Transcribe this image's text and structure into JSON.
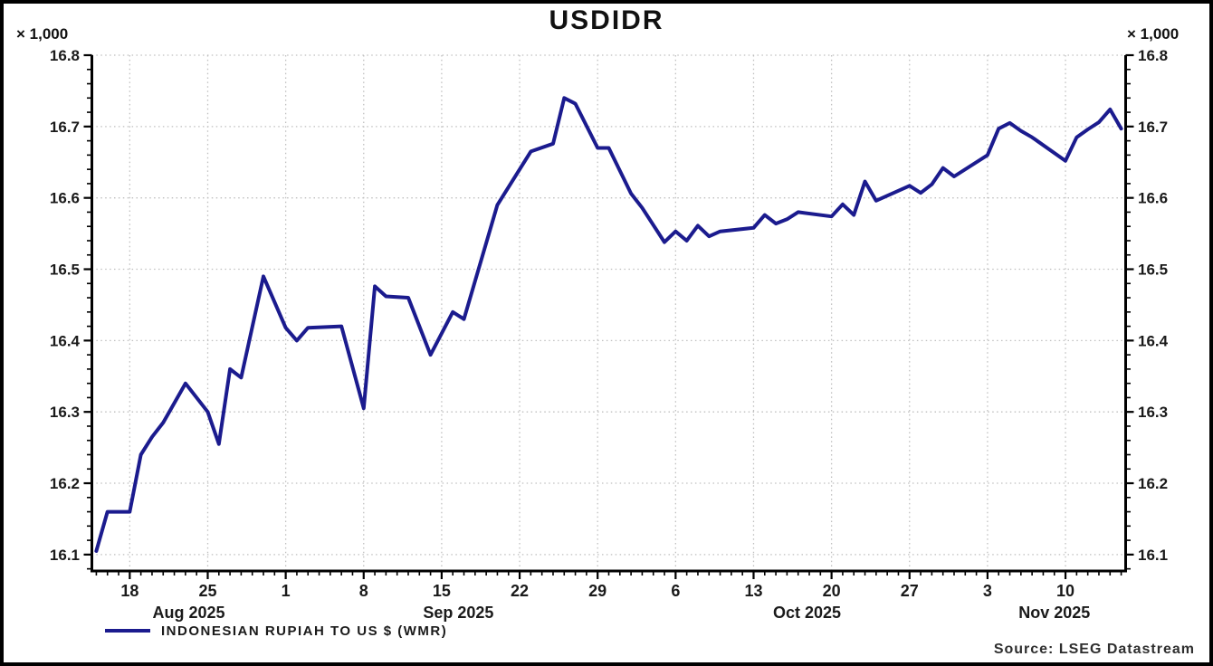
{
  "title": "USDIDR",
  "axis_multiplier": "× 1,000",
  "legend": {
    "label": "INDONESIAN RUPIAH TO US $ (WMR)"
  },
  "source": "Source: LSEG Datastream",
  "colors": {
    "line": "#1b1b8e",
    "grid": "#bfbfbf",
    "axis": "#000000",
    "tick_text": "#1a1a1a"
  },
  "chart_data": {
    "type": "line",
    "title": "USDIDR",
    "series_name": "INDONESIAN RUPIAH TO US $ (WMR)",
    "y_unit_multiplier": "× 1,000",
    "grid": "dotted",
    "legend_position": "bottom-left",
    "ylim": [
      16.077,
      16.8
    ],
    "y_ticks": [
      16.1,
      16.2,
      16.3,
      16.4,
      16.5,
      16.6,
      16.7,
      16.8
    ],
    "y_tick_labels": [
      "16.1",
      "16.2",
      "16.3",
      "16.4",
      "16.5",
      "16.6",
      "16.7",
      "16.8"
    ],
    "y_minor_step": 0.02,
    "x_axis": {
      "start_day": -0.4,
      "end_day": 92.4,
      "day_zero_date": "Aug 15 2025",
      "week_ticks": [
        {
          "day": 3,
          "label": "18"
        },
        {
          "day": 10,
          "label": "25"
        },
        {
          "day": 17,
          "label": "1"
        },
        {
          "day": 24,
          "label": "8"
        },
        {
          "day": 31,
          "label": "15"
        },
        {
          "day": 38,
          "label": "22"
        },
        {
          "day": 45,
          "label": "29"
        },
        {
          "day": 52,
          "label": "6"
        },
        {
          "day": 59,
          "label": "13"
        },
        {
          "day": 66,
          "label": "20"
        },
        {
          "day": 73,
          "label": "27"
        },
        {
          "day": 80,
          "label": "3"
        },
        {
          "day": 87,
          "label": "10"
        }
      ],
      "month_labels": [
        {
          "day": 8.3,
          "label": "Aug 2025"
        },
        {
          "day": 32.5,
          "label": "Sep 2025"
        },
        {
          "day": 63.8,
          "label": "Oct 2025"
        },
        {
          "day": 86.0,
          "label": "Nov 2025"
        }
      ]
    },
    "points": [
      {
        "day": 0,
        "date": "Aug 15",
        "value": 16.105
      },
      {
        "day": 1,
        "date": "Aug 16",
        "value": 16.16
      },
      {
        "day": 3,
        "date": "Aug 18",
        "value": 16.16
      },
      {
        "day": 4,
        "date": "Aug 19",
        "value": 16.24
      },
      {
        "day": 5,
        "date": "Aug 20",
        "value": 16.265
      },
      {
        "day": 6,
        "date": "Aug 21",
        "value": 16.285
      },
      {
        "day": 8,
        "date": "Aug 23",
        "value": 16.34
      },
      {
        "day": 10,
        "date": "Aug 25",
        "value": 16.3
      },
      {
        "day": 11,
        "date": "Aug 26",
        "value": 16.255
      },
      {
        "day": 12,
        "date": "Aug 27",
        "value": 16.36
      },
      {
        "day": 13,
        "date": "Aug 28",
        "value": 16.348
      },
      {
        "day": 15,
        "date": "Aug 30",
        "value": 16.49
      },
      {
        "day": 17,
        "date": "Sep 1",
        "value": 16.418
      },
      {
        "day": 18,
        "date": "Sep 2",
        "value": 16.4
      },
      {
        "day": 19,
        "date": "Sep 3",
        "value": 16.418
      },
      {
        "day": 22,
        "date": "Sep 6",
        "value": 16.42
      },
      {
        "day": 24,
        "date": "Sep 8",
        "value": 16.305
      },
      {
        "day": 25,
        "date": "Sep 9",
        "value": 16.476
      },
      {
        "day": 26,
        "date": "Sep 10",
        "value": 16.462
      },
      {
        "day": 28,
        "date": "Sep 12",
        "value": 16.46
      },
      {
        "day": 30,
        "date": "Sep 14",
        "value": 16.38
      },
      {
        "day": 32,
        "date": "Sep 16",
        "value": 16.44
      },
      {
        "day": 33,
        "date": "Sep 17",
        "value": 16.43
      },
      {
        "day": 36,
        "date": "Sep 20",
        "value": 16.59
      },
      {
        "day": 39,
        "date": "Sep 23",
        "value": 16.665
      },
      {
        "day": 41,
        "date": "Sep 25",
        "value": 16.676
      },
      {
        "day": 42,
        "date": "Sep 26",
        "value": 16.74
      },
      {
        "day": 43,
        "date": "Sep 27",
        "value": 16.732
      },
      {
        "day": 45,
        "date": "Sep 29",
        "value": 16.67
      },
      {
        "day": 46,
        "date": "Sep 30",
        "value": 16.67
      },
      {
        "day": 48,
        "date": "Oct 2",
        "value": 16.606
      },
      {
        "day": 49,
        "date": "Oct 3",
        "value": 16.586
      },
      {
        "day": 51,
        "date": "Oct 5",
        "value": 16.538
      },
      {
        "day": 52,
        "date": "Oct 6",
        "value": 16.553
      },
      {
        "day": 53,
        "date": "Oct 7",
        "value": 16.54
      },
      {
        "day": 54,
        "date": "Oct 8",
        "value": 16.561
      },
      {
        "day": 55,
        "date": "Oct 9",
        "value": 16.546
      },
      {
        "day": 56,
        "date": "Oct 10",
        "value": 16.553
      },
      {
        "day": 59,
        "date": "Oct 13",
        "value": 16.558
      },
      {
        "day": 60,
        "date": "Oct 14",
        "value": 16.576
      },
      {
        "day": 61,
        "date": "Oct 15",
        "value": 16.564
      },
      {
        "day": 62,
        "date": "Oct 16",
        "value": 16.57
      },
      {
        "day": 63,
        "date": "Oct 17",
        "value": 16.58
      },
      {
        "day": 66,
        "date": "Oct 20",
        "value": 16.574
      },
      {
        "day": 67,
        "date": "Oct 21",
        "value": 16.591
      },
      {
        "day": 68,
        "date": "Oct 22",
        "value": 16.576
      },
      {
        "day": 69,
        "date": "Oct 23",
        "value": 16.623
      },
      {
        "day": 70,
        "date": "Oct 24",
        "value": 16.596
      },
      {
        "day": 73,
        "date": "Oct 27",
        "value": 16.617
      },
      {
        "day": 74,
        "date": "Oct 28",
        "value": 16.607
      },
      {
        "day": 75,
        "date": "Oct 29",
        "value": 16.619
      },
      {
        "day": 76,
        "date": "Oct 30",
        "value": 16.642
      },
      {
        "day": 77,
        "date": "Oct 31",
        "value": 16.63
      },
      {
        "day": 80,
        "date": "Nov 3",
        "value": 16.66
      },
      {
        "day": 81,
        "date": "Nov 4",
        "value": 16.697
      },
      {
        "day": 82,
        "date": "Nov 5",
        "value": 16.705
      },
      {
        "day": 83,
        "date": "Nov 6",
        "value": 16.694
      },
      {
        "day": 84,
        "date": "Nov 7",
        "value": 16.685
      },
      {
        "day": 87,
        "date": "Nov 10",
        "value": 16.652
      },
      {
        "day": 88,
        "date": "Nov 11",
        "value": 16.685
      },
      {
        "day": 89,
        "date": "Nov 12",
        "value": 16.696
      },
      {
        "day": 90,
        "date": "Nov 13",
        "value": 16.706
      },
      {
        "day": 91,
        "date": "Nov 14",
        "value": 16.724
      },
      {
        "day": 92,
        "date": "Nov 15",
        "value": 16.697
      }
    ]
  }
}
